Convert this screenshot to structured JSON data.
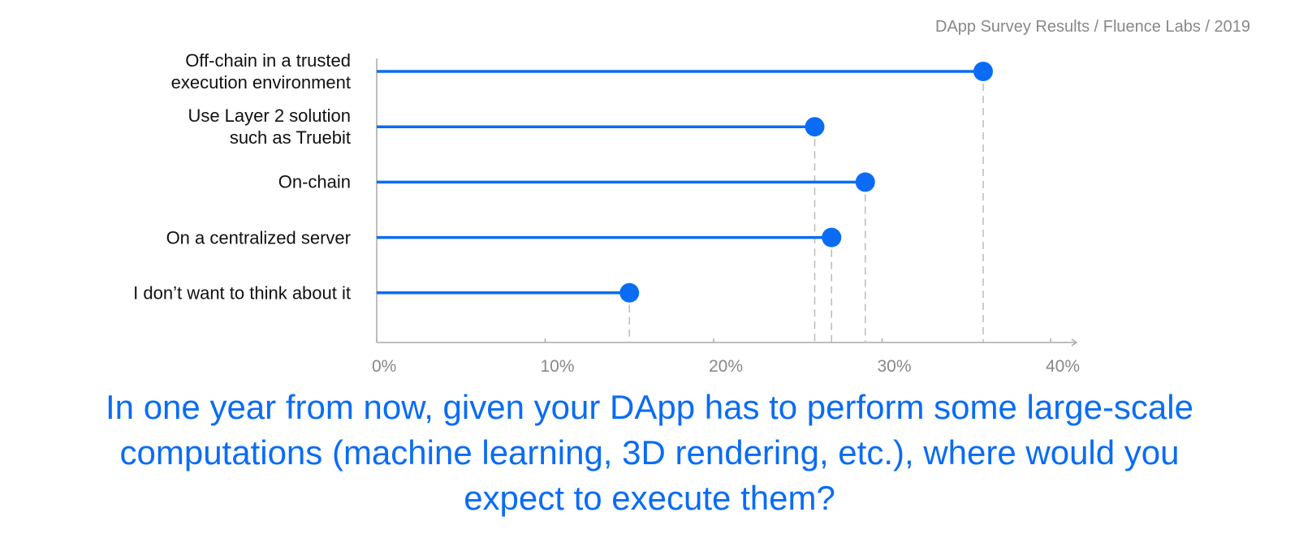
{
  "chart_data": {
    "type": "lollipop",
    "title": "In one year from now, given your DApp has to perform some large-scale computations (machine learning, 3D rendering, etc.), where would you expect to execute them?",
    "source": "DApp Survey Results / Fluence Labs / 2019",
    "categories": [
      "Off-chain in a trusted\nexecution environment",
      "Use Layer 2 solution\nsuch as Truebit",
      "On-chain",
      "On a centralized server",
      "I don’t want to think about it"
    ],
    "values": [
      36,
      26,
      29,
      27,
      15
    ],
    "color": "#0a6cf5",
    "xlim": [
      0,
      40
    ],
    "xticks": [
      {
        "value": 0,
        "label": "0%"
      },
      {
        "value": 10,
        "label": "10%"
      },
      {
        "value": 20,
        "label": "20%"
      },
      {
        "value": 30,
        "label": "30%"
      },
      {
        "value": 40,
        "label": "40%"
      }
    ]
  }
}
